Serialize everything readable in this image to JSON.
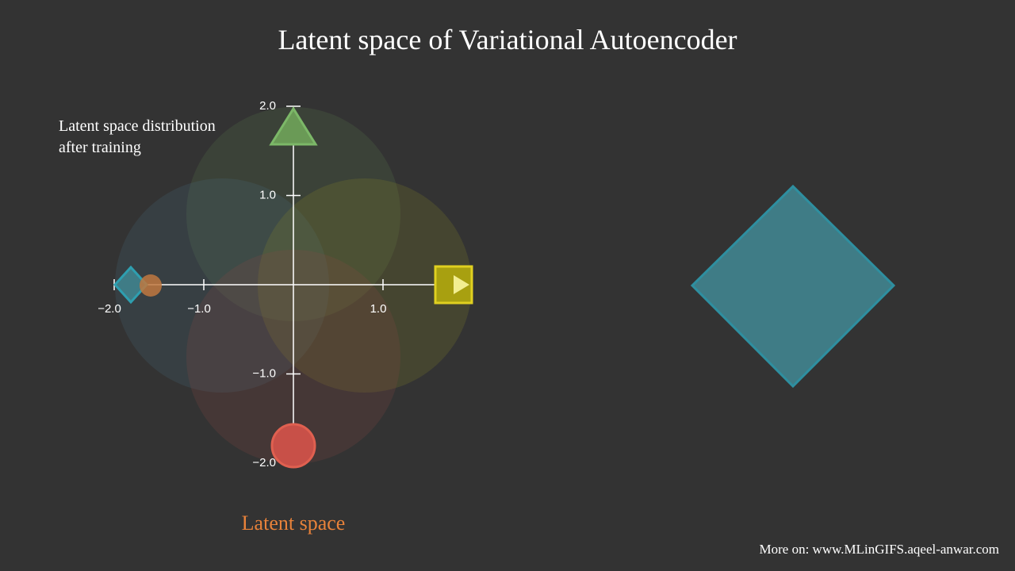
{
  "header": {
    "title": "Latent space of Variational Autoencoder"
  },
  "annotation": [
    "Latent space distribution",
    "after training"
  ],
  "axes": {
    "xticks": [
      {
        "value": -2,
        "label": "−2.0"
      },
      {
        "value": -1,
        "label": "−1.0"
      },
      {
        "value": 1,
        "label": "1.0"
      }
    ],
    "yticks": [
      {
        "value": 2,
        "label": "2.0"
      },
      {
        "value": 1,
        "label": "1.0"
      },
      {
        "value": -1,
        "label": "−1.0"
      },
      {
        "value": -2,
        "label": "−2.0"
      }
    ]
  },
  "caption": "Latent space",
  "footer": "More on: www.MLinGIFS.aqeel-anwar.com"
}
